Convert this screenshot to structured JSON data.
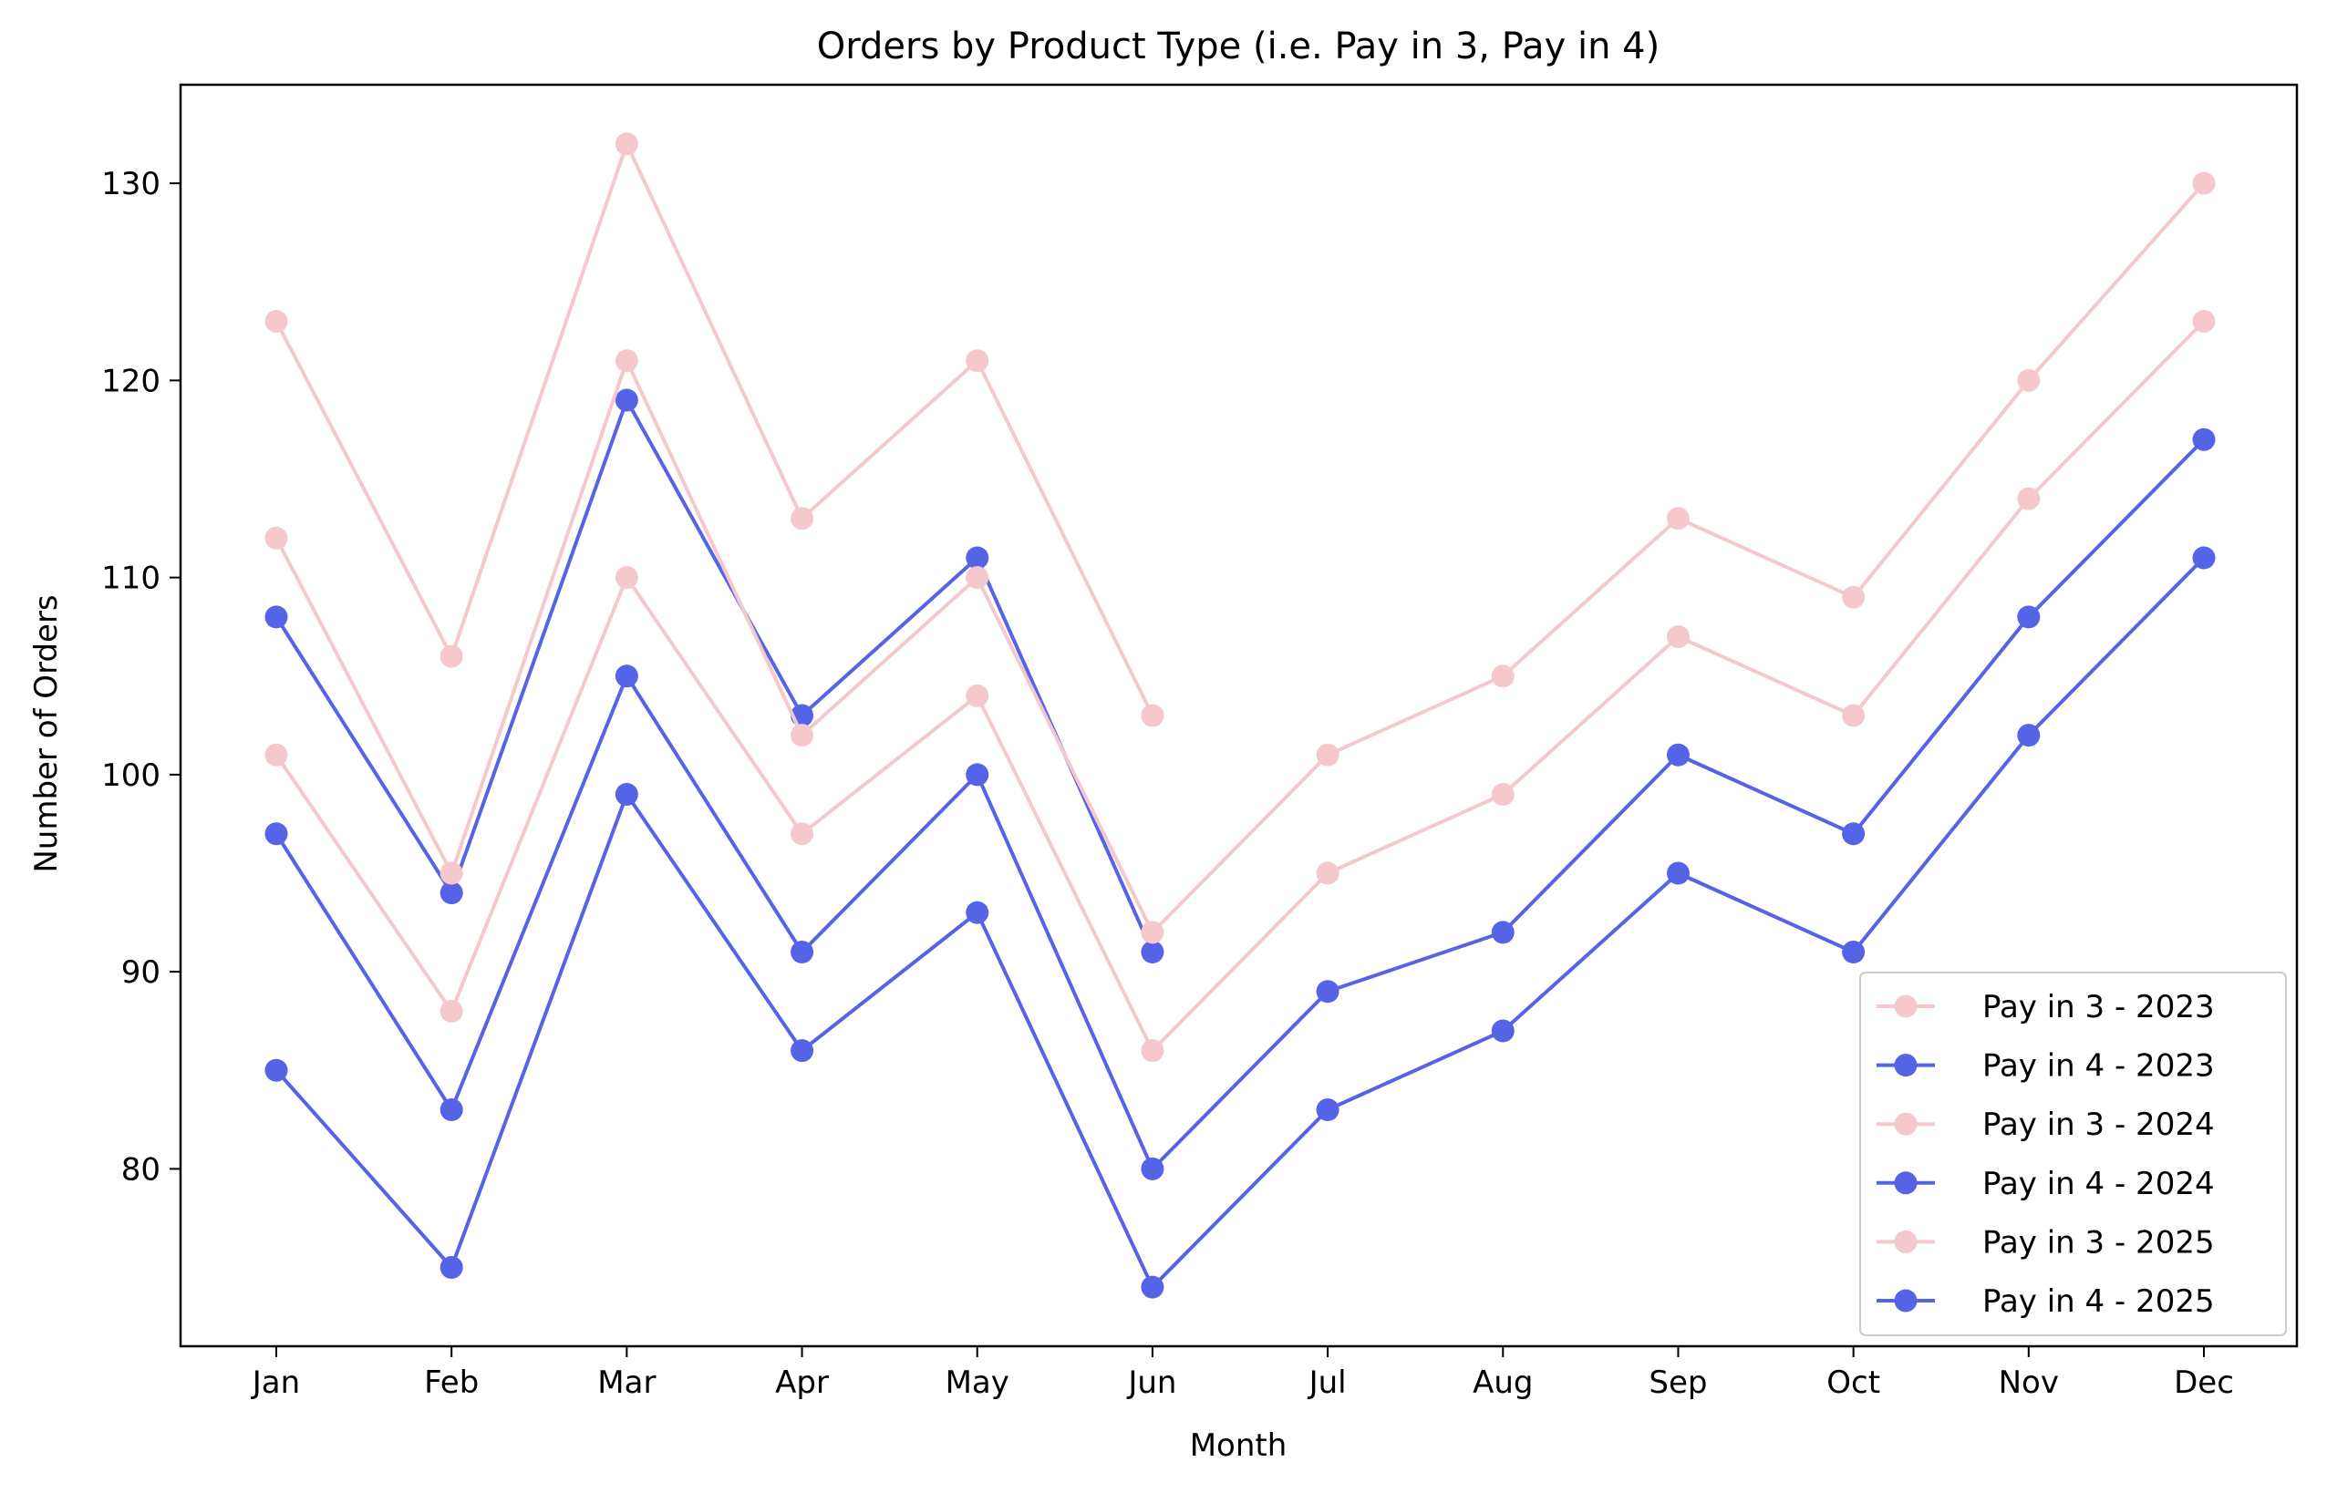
{
  "chart_data": {
    "type": "line",
    "title": "Orders by Product Type (i.e. Pay in 3, Pay in 4)",
    "xlabel": "Month",
    "ylabel": "Number of Orders",
    "categories": [
      "Jan",
      "Feb",
      "Mar",
      "Apr",
      "May",
      "Jun",
      "Jul",
      "Aug",
      "Sep",
      "Oct",
      "Nov",
      "Dec"
    ],
    "ylim": [
      71,
      135
    ],
    "yticks": [
      80,
      90,
      100,
      110,
      120,
      130
    ],
    "grid": false,
    "legend_position": "bottom-right",
    "colors": {
      "pay_in_3": "#f4c8cc",
      "pay_in_4": "#5564e6"
    },
    "series": [
      {
        "name": "Pay in 3 - 2023",
        "color": "#f4c8cc",
        "values": [
          123,
          106,
          132,
          113,
          121,
          103,
          null,
          null,
          null,
          null,
          null,
          null
        ]
      },
      {
        "name": "Pay in 4 - 2023",
        "color": "#5564e6",
        "values": [
          108,
          94,
          119,
          103,
          111,
          91,
          null,
          null,
          null,
          null,
          null,
          null
        ]
      },
      {
        "name": "Pay in 3 - 2024",
        "color": "#f4c8cc",
        "values": [
          112,
          95,
          121,
          102,
          110,
          92,
          101,
          105,
          113,
          109,
          120,
          130
        ]
      },
      {
        "name": "Pay in 4 - 2024",
        "color": "#5564e6",
        "values": [
          97,
          83,
          105,
          91,
          100,
          80,
          89,
          92,
          101,
          97,
          108,
          117
        ]
      },
      {
        "name": "Pay in 3 - 2025",
        "color": "#f4c8cc",
        "values": [
          101,
          88,
          110,
          97,
          104,
          86,
          95,
          99,
          107,
          103,
          114,
          123
        ]
      },
      {
        "name": "Pay in 4 - 2025",
        "color": "#5564e6",
        "values": [
          85,
          75,
          99,
          86,
          93,
          74,
          83,
          87,
          95,
          91,
          102,
          111
        ]
      }
    ]
  }
}
